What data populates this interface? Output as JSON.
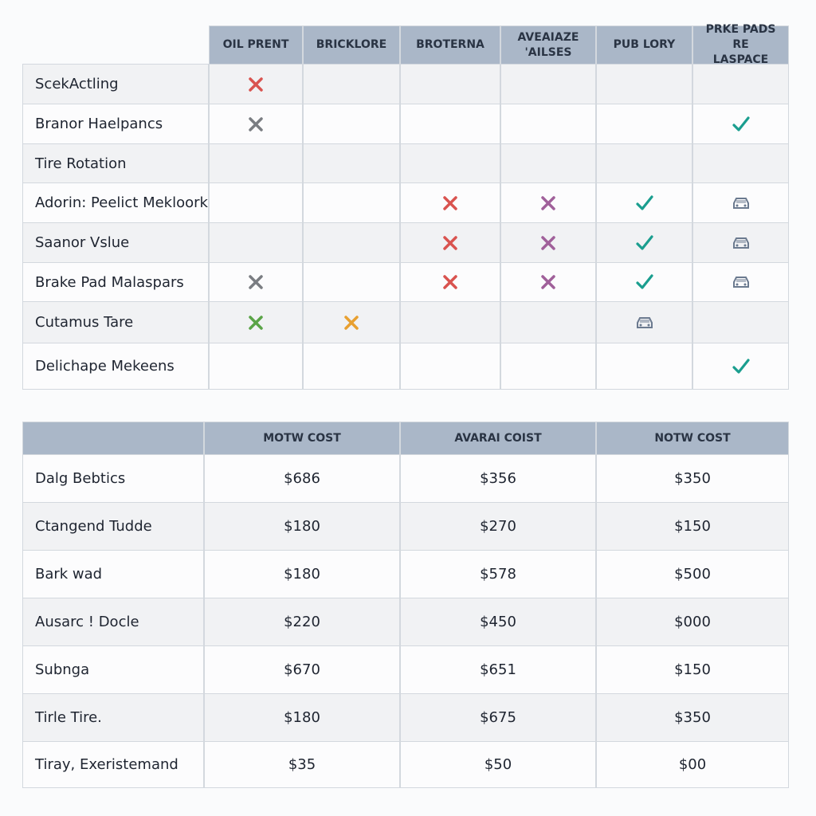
{
  "features_table": {
    "headers": [
      "OIL PRENT",
      "BRICKLORE",
      "BROTERNA",
      "AVEAIAZE 'AILSES",
      "PUB LORY",
      "PRKE PADS RE LASPACE"
    ],
    "rows": [
      {
        "label": "ScekActling",
        "cells": [
          {
            "icon": "x",
            "color": "#d9534f"
          },
          null,
          null,
          null,
          null,
          null
        ]
      },
      {
        "label": "Branor Haelpancs",
        "cells": [
          {
            "icon": "x",
            "color": "#7a7d82"
          },
          null,
          null,
          null,
          null,
          {
            "icon": "check",
            "color": "#1a9e8f"
          }
        ]
      },
      {
        "label": "Tire Rotation",
        "cells": [
          null,
          null,
          null,
          null,
          null,
          null
        ]
      },
      {
        "label": "Adorin: Peelict Mekloork",
        "cells": [
          null,
          null,
          {
            "icon": "x",
            "color": "#d9534f"
          },
          {
            "icon": "x",
            "color": "#a0609a"
          },
          {
            "icon": "check",
            "color": "#1a9e8f"
          },
          {
            "icon": "car",
            "color": "#6b7a8f"
          }
        ]
      },
      {
        "label": "Saanor Vslue",
        "cells": [
          null,
          null,
          {
            "icon": "x",
            "color": "#d9534f"
          },
          {
            "icon": "x",
            "color": "#a0609a"
          },
          {
            "icon": "check",
            "color": "#1a9e8f"
          },
          {
            "icon": "car",
            "color": "#6b7a8f"
          }
        ]
      },
      {
        "label": "Brake Pad Malaspars",
        "cells": [
          {
            "icon": "x",
            "color": "#7a7d82"
          },
          null,
          {
            "icon": "x",
            "color": "#d9534f"
          },
          {
            "icon": "x",
            "color": "#a0609a"
          },
          {
            "icon": "check",
            "color": "#1a9e8f"
          },
          {
            "icon": "car",
            "color": "#6b7a8f"
          }
        ]
      },
      {
        "label": "Cutamus Tare",
        "cells": [
          {
            "icon": "x",
            "color": "#5aa447"
          },
          {
            "icon": "x",
            "color": "#e8a030"
          },
          null,
          null,
          {
            "icon": "car",
            "color": "#6b7a8f"
          },
          null
        ]
      },
      {
        "label": "Delichape Mekeens",
        "cells": [
          null,
          null,
          null,
          null,
          null,
          {
            "icon": "check",
            "color": "#1a9e8f"
          }
        ]
      }
    ]
  },
  "cost_table": {
    "headers": [
      "MOTW COST",
      "AVARAI COIST",
      "NOTW COST"
    ],
    "rows": [
      {
        "label": "Dalg Bebtics",
        "cells": [
          "$686",
          "$356",
          "$350"
        ]
      },
      {
        "label": "Ctangend Tudde",
        "cells": [
          "$180",
          "$270",
          "$150"
        ]
      },
      {
        "label": "Bark wad",
        "cells": [
          "$180",
          "$578",
          "$500"
        ]
      },
      {
        "label": "Ausarc ! Docle",
        "cells": [
          "$220",
          "$450",
          "$000"
        ]
      },
      {
        "label": "Subnga",
        "cells": [
          "$670",
          "$651",
          "$150"
        ]
      },
      {
        "label": "Tirle Tire.",
        "cells": [
          "$180",
          "$675",
          "$350"
        ]
      },
      {
        "label": "Tiray, Exeristemand",
        "cells": [
          "$35",
          "$50",
          "$00"
        ]
      }
    ]
  }
}
